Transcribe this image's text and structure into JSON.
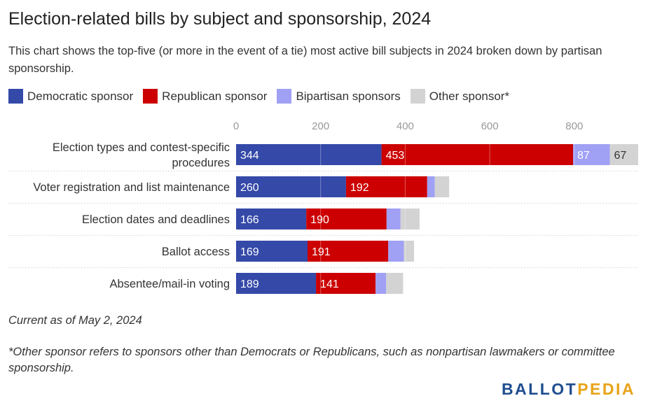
{
  "title": "Election-related bills by subject and sponsorship, 2024",
  "subtitle": "This chart shows the top-five (or more in the event of a tie) most active bill subjects in 2024 broken down by partisan sponsorship.",
  "colors": {
    "democratic": "#3449a8",
    "republican": "#cc0000",
    "bipartisan": "#a0a0f5",
    "other": "#d3d3d3",
    "gridline": "#cccccc",
    "tick_label": "#999999"
  },
  "legend": [
    {
      "label": "Democratic sponsor",
      "color": "#3449a8"
    },
    {
      "label": "Republican sponsor",
      "color": "#cc0000"
    },
    {
      "label": "Bipartisan sponsors",
      "color": "#a0a0f5"
    },
    {
      "label": "Other sponsor*",
      "color": "#d3d3d3"
    }
  ],
  "chart_data": {
    "type": "bar",
    "orientation": "horizontal",
    "stacked": true,
    "title": "Election-related bills by subject and sponsorship, 2024",
    "xlim": [
      0,
      940
    ],
    "x_ticks": [
      0,
      200,
      400,
      600,
      800
    ],
    "grid": true,
    "legend_position": "top-left",
    "categories": [
      "Election types and contest-specific procedures",
      "Voter registration and list maintenance",
      "Election dates and deadlines",
      "Ballot access",
      "Absentee/mail-in voting"
    ],
    "category_lines": [
      [
        "Election types and contest-specific",
        "procedures"
      ],
      [
        "Voter registration and list maintenance"
      ],
      [
        "Election dates and deadlines"
      ],
      [
        "Ballot access"
      ],
      [
        "Absentee/mail-in voting"
      ]
    ],
    "series": [
      {
        "name": "Democratic sponsor",
        "key": "democratic",
        "values": [
          344,
          260,
          166,
          169,
          189
        ],
        "labeled": [
          true,
          true,
          true,
          true,
          true
        ]
      },
      {
        "name": "Republican sponsor",
        "key": "republican",
        "values": [
          453,
          192,
          190,
          191,
          141
        ],
        "labeled": [
          true,
          true,
          true,
          true,
          true
        ]
      },
      {
        "name": "Bipartisan sponsors",
        "key": "bipartisan",
        "values": [
          87,
          18,
          33,
          37,
          25
        ],
        "labeled": [
          true,
          false,
          false,
          false,
          false
        ]
      },
      {
        "name": "Other sponsor*",
        "key": "other",
        "values": [
          67,
          34,
          45,
          24,
          40
        ],
        "labeled": [
          true,
          false,
          false,
          false,
          false
        ]
      }
    ]
  },
  "note": "Current as of May 2, 2024",
  "footnote": "*Other sponsor refers to sponsors other than Democrats or Republicans, such as nonpartisan lawmakers or committee sponsorship.",
  "logo": {
    "part1": "BALLOT",
    "part2": "PEDIA"
  }
}
